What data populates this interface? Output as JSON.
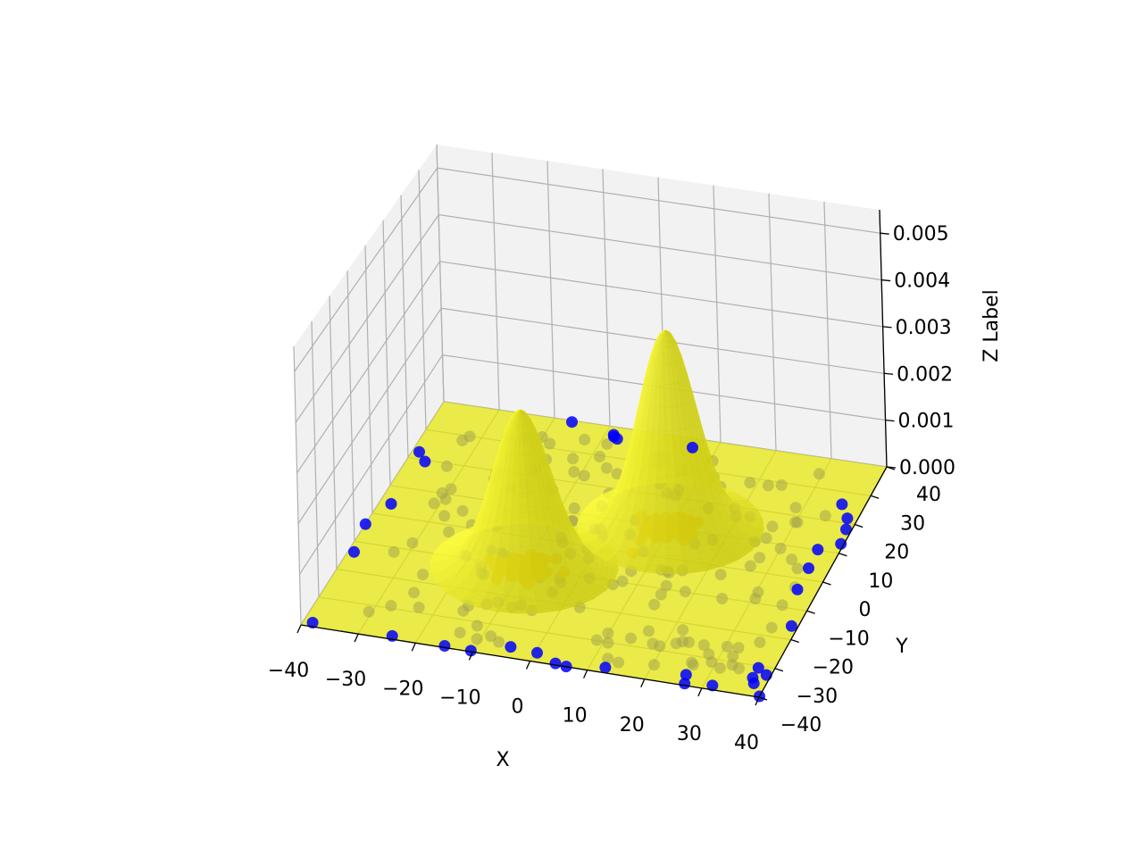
{
  "chart_data": {
    "type": "scatter",
    "subtype": "3d-surface-with-scatter",
    "title": "",
    "xlabel": "X",
    "ylabel": "Y",
    "zlabel": "Z Label",
    "xlim": [
      -40,
      40
    ],
    "ylim": [
      -40,
      40
    ],
    "zlim": [
      0,
      0.0055
    ],
    "xticks": [
      "−40",
      "−30",
      "−20",
      "−10",
      "0",
      "10",
      "20",
      "30",
      "40"
    ],
    "yticks": [
      "−40",
      "−30",
      "−20",
      "−10",
      "0",
      "10",
      "20",
      "30",
      "40"
    ],
    "zticks": [
      "0.000",
      "0.001",
      "0.002",
      "0.003",
      "0.004",
      "0.005"
    ],
    "grid": true,
    "legend": "none",
    "surface": {
      "color": "#e6e600",
      "opacity": 0.7,
      "peaks": [
        {
          "cx": -10,
          "cy": -10,
          "sigma": 5,
          "height": 0.0032
        },
        {
          "cx": 10,
          "cy": 10,
          "sigma": 5,
          "height": 0.0041
        }
      ]
    },
    "series": [
      {
        "color_point_cluster": "#ff8c00",
        "clusters": [
          {
            "cx": -10,
            "cy": -10,
            "spread": 5,
            "count": 60
          },
          {
            "cx": 10,
            "cy": 10,
            "spread": 4,
            "count": 60
          }
        ]
      },
      {
        "color_point": "#0000ff",
        "distribution": "uniform",
        "range": [
          -40,
          40
        ],
        "count": 200
      }
    ]
  }
}
